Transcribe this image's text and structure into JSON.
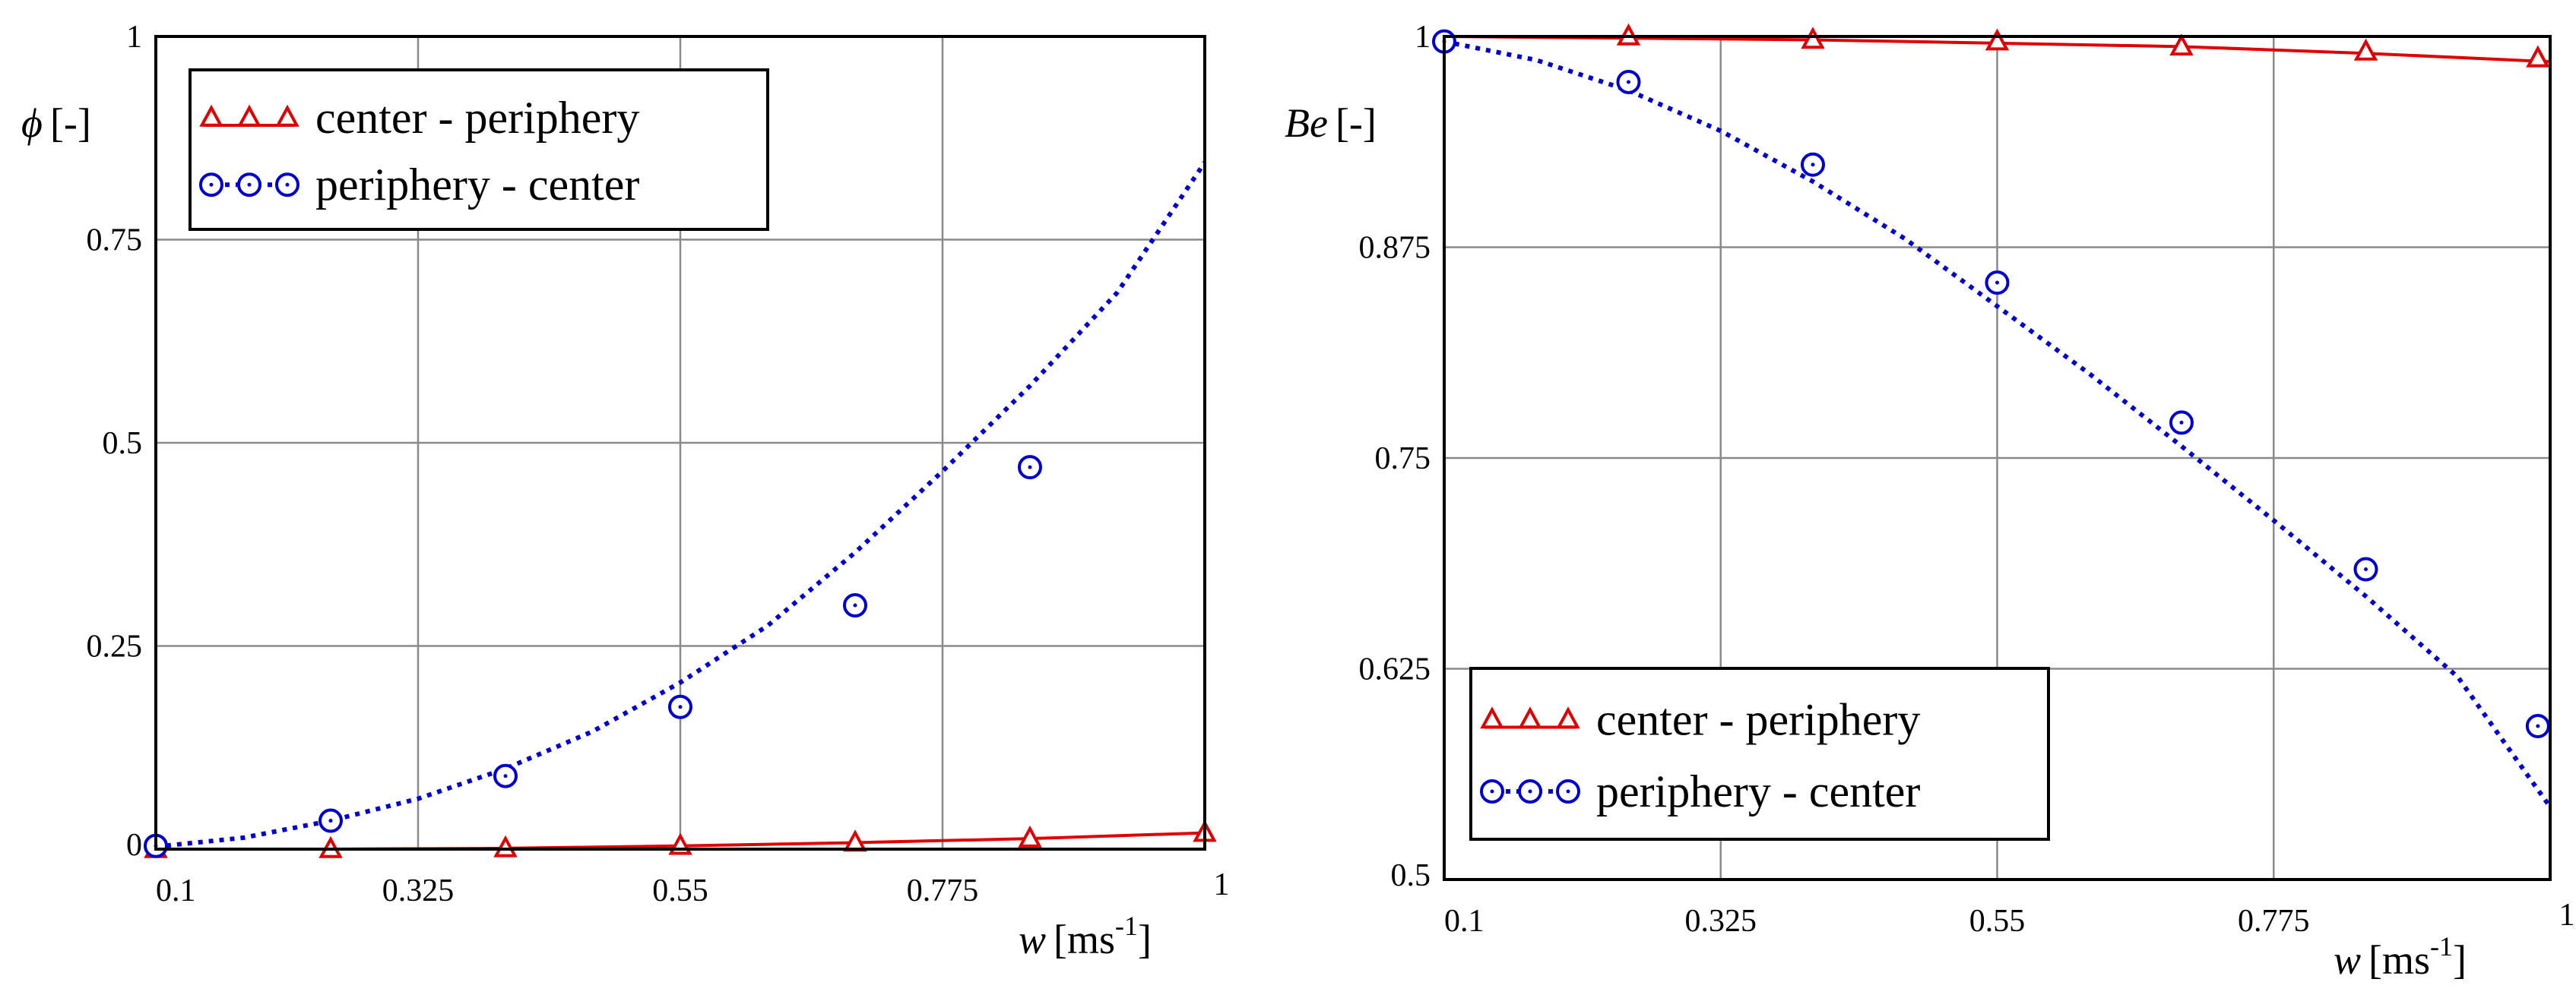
{
  "chart_data": [
    {
      "type": "line",
      "xlabel": {
        "var": "w",
        "unit": "[ms",
        "exp": "-1",
        "close": "]"
      },
      "ylabel": {
        "var": "ϕ",
        "unit": "[-]"
      },
      "xlim": [
        0.1,
        1
      ],
      "ylim": [
        0,
        1
      ],
      "xticks": [
        0.1,
        0.325,
        0.55,
        0.775,
        1
      ],
      "xtick_labels": [
        "0.1",
        "0.325",
        "0.55",
        "0.775",
        "1"
      ],
      "yticks": [
        0,
        0.25,
        0.5,
        0.75,
        1
      ],
      "ytick_labels": [
        "0",
        "0.25",
        "0.5",
        "0.75",
        "1"
      ],
      "grid": true,
      "legend_position": "top-left",
      "series": [
        {
          "name": "center - periphery",
          "color": "#e00000",
          "line": "solid",
          "marker": "triangle",
          "x": [
            0.1,
            0.25,
            0.4,
            0.55,
            0.7,
            0.85,
            1.0
          ],
          "y": [
            0.0,
            0.0,
            0.001,
            0.004,
            0.008,
            0.013,
            0.02
          ],
          "marker_x": [
            0.1,
            0.25,
            0.4,
            0.55,
            0.7,
            0.85,
            1.0
          ],
          "marker_y": [
            0.0,
            0.0,
            0.001,
            0.004,
            0.008,
            0.013,
            0.02
          ]
        },
        {
          "name": "periphery - center",
          "color": "#0000d0",
          "line": "dotted",
          "marker": "circle",
          "x": [
            0.1,
            0.175,
            0.25,
            0.325,
            0.4,
            0.475,
            0.55,
            0.625,
            0.7,
            0.775,
            0.85,
            0.925,
            1.0
          ],
          "y": [
            0.003,
            0.014,
            0.035,
            0.062,
            0.099,
            0.145,
            0.205,
            0.275,
            0.365,
            0.465,
            0.57,
            0.685,
            0.845
          ],
          "marker_x": [
            0.1,
            0.25,
            0.4,
            0.55,
            0.7,
            0.85
          ],
          "marker_y": [
            0.004,
            0.035,
            0.09,
            0.175,
            0.3,
            0.47
          ]
        }
      ]
    },
    {
      "type": "line",
      "xlabel": {
        "var": "w",
        "unit": "[ms",
        "exp": "-1",
        "close": "]"
      },
      "ylabel": {
        "var": "Be",
        "unit": "[-]"
      },
      "xlim": [
        0.1,
        1
      ],
      "ylim": [
        0.5,
        1
      ],
      "xticks": [
        0.1,
        0.325,
        0.55,
        0.775,
        1
      ],
      "xtick_labels": [
        "0.1",
        "0.325",
        "0.55",
        "0.775",
        "1"
      ],
      "yticks": [
        0.5,
        0.625,
        0.75,
        0.875,
        1
      ],
      "ytick_labels": [
        "0.5",
        "0.625",
        "0.75",
        "0.875",
        "1"
      ],
      "grid": true,
      "legend_position": "bottom-left",
      "series": [
        {
          "name": "center - periphery",
          "color": "#e00000",
          "line": "solid",
          "marker": "triangle",
          "x": [
            0.1,
            0.25,
            0.4,
            0.55,
            0.7,
            0.85,
            1.0
          ],
          "y": [
            1.0,
            0.999,
            0.998,
            0.996,
            0.994,
            0.99,
            0.985
          ],
          "marker_x": [
            0.25,
            0.4,
            0.55,
            0.7,
            0.85,
            0.99
          ],
          "marker_y": [
            1.0,
            0.998,
            0.997,
            0.994,
            0.991,
            0.987
          ]
        },
        {
          "name": "periphery - center",
          "color": "#0000d0",
          "line": "dotted",
          "marker": "circle",
          "x": [
            0.1,
            0.175,
            0.25,
            0.325,
            0.4,
            0.475,
            0.55,
            0.625,
            0.7,
            0.775,
            0.85,
            0.925,
            1.0
          ],
          "y": [
            0.997,
            0.986,
            0.968,
            0.944,
            0.914,
            0.88,
            0.84,
            0.8,
            0.757,
            0.713,
            0.668,
            0.62,
            0.543
          ],
          "marker_x": [
            0.1,
            0.25,
            0.4,
            0.55,
            0.7,
            0.85,
            0.99
          ],
          "marker_y": [
            0.997,
            0.973,
            0.924,
            0.854,
            0.771,
            0.684,
            0.591
          ]
        }
      ]
    }
  ]
}
